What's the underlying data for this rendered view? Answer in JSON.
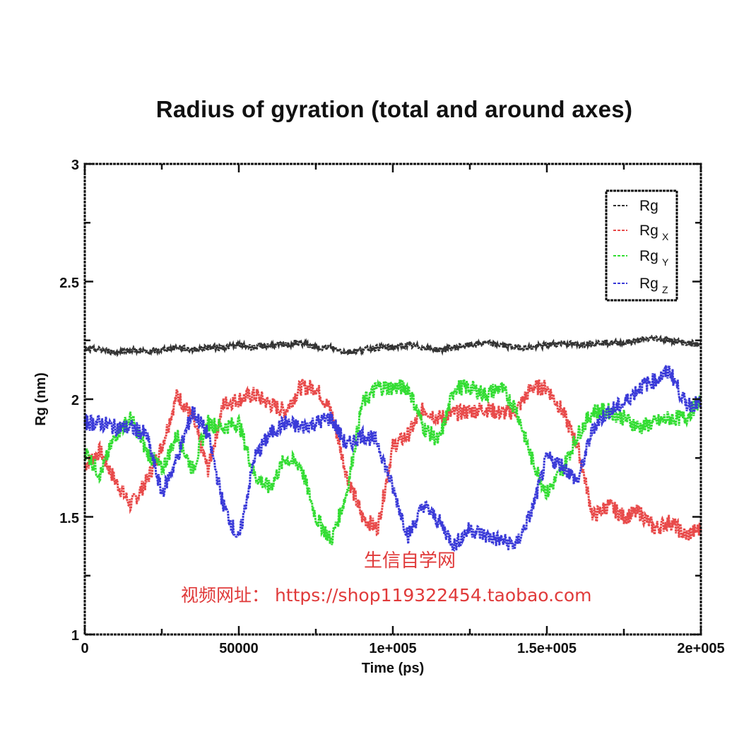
{
  "chart_data": {
    "type": "line",
    "title": "Radius of gyration (total and around axes)",
    "xlabel": "Time (ps)",
    "ylabel": "Rg (nm)",
    "xlim": [
      0,
      200000
    ],
    "ylim": [
      1,
      3
    ],
    "x_ticks": [
      0,
      50000,
      100000,
      150000,
      200000
    ],
    "x_tick_labels": [
      "0",
      "50000",
      "1e+005",
      "1.5e+005",
      "2e+005"
    ],
    "y_ticks": [
      1,
      1.5,
      2,
      2.5,
      3
    ],
    "y_tick_labels": [
      "1",
      "1.5",
      "2",
      "2.5",
      "3"
    ],
    "grid": false,
    "legend_position": "upper right",
    "x": [
      0,
      5000,
      10000,
      15000,
      20000,
      25000,
      30000,
      35000,
      40000,
      45000,
      50000,
      55000,
      60000,
      65000,
      70000,
      75000,
      80000,
      85000,
      90000,
      95000,
      100000,
      105000,
      110000,
      115000,
      120000,
      125000,
      130000,
      135000,
      140000,
      145000,
      150000,
      155000,
      160000,
      165000,
      170000,
      175000,
      180000,
      185000,
      190000,
      195000,
      200000
    ],
    "series": [
      {
        "name": "Rg",
        "color": "#333333",
        "values": [
          2.21,
          2.21,
          2.2,
          2.21,
          2.2,
          2.21,
          2.22,
          2.21,
          2.22,
          2.22,
          2.23,
          2.22,
          2.23,
          2.23,
          2.24,
          2.22,
          2.22,
          2.2,
          2.21,
          2.22,
          2.22,
          2.23,
          2.22,
          2.21,
          2.22,
          2.23,
          2.24,
          2.23,
          2.22,
          2.22,
          2.23,
          2.24,
          2.23,
          2.24,
          2.24,
          2.24,
          2.25,
          2.26,
          2.25,
          2.24,
          2.23
        ]
      },
      {
        "name": "Rg_X",
        "color": "#e84a4a",
        "values": [
          1.72,
          1.78,
          1.65,
          1.55,
          1.65,
          1.8,
          2.02,
          1.92,
          1.7,
          1.98,
          2.0,
          2.02,
          1.98,
          1.95,
          2.05,
          2.05,
          1.95,
          1.68,
          1.5,
          1.45,
          1.8,
          1.85,
          1.96,
          1.92,
          1.94,
          1.95,
          1.96,
          1.94,
          1.95,
          2.05,
          2.05,
          1.95,
          1.8,
          1.5,
          1.55,
          1.5,
          1.52,
          1.45,
          1.48,
          1.42,
          1.45
        ]
      },
      {
        "name": "Rg_Y",
        "color": "#33dd33",
        "values": [
          1.78,
          1.68,
          1.85,
          1.92,
          1.78,
          1.7,
          1.85,
          1.7,
          1.9,
          1.88,
          1.9,
          1.68,
          1.62,
          1.75,
          1.72,
          1.5,
          1.4,
          1.6,
          1.98,
          2.05,
          2.05,
          2.05,
          1.88,
          1.82,
          2.05,
          2.05,
          2.02,
          2.05,
          1.96,
          1.75,
          1.6,
          1.7,
          1.85,
          1.95,
          1.95,
          1.92,
          1.88,
          1.9,
          1.92,
          1.92,
          2.0
        ]
      },
      {
        "name": "Rg_Z",
        "color": "#3a3ad8",
        "values": [
          1.9,
          1.9,
          1.88,
          1.88,
          1.85,
          1.6,
          1.75,
          1.95,
          1.85,
          1.55,
          1.4,
          1.75,
          1.85,
          1.9,
          1.88,
          1.9,
          1.92,
          1.8,
          1.85,
          1.82,
          1.62,
          1.42,
          1.55,
          1.48,
          1.38,
          1.45,
          1.42,
          1.4,
          1.38,
          1.52,
          1.75,
          1.72,
          1.65,
          1.88,
          1.95,
          1.98,
          2.05,
          2.08,
          2.12,
          1.98,
          1.98
        ]
      }
    ],
    "legend": [
      "Rg",
      "Rg_X",
      "Rg_Y",
      "Rg_Z"
    ],
    "annotations": [
      "生信自学网",
      "视频网址： https://shop119322454.taobao.com"
    ]
  },
  "title": "Radius of gyration (total and around axes)",
  "axes": {
    "xlabel": "Time (ps)",
    "ylabel": "Rg (nm)",
    "x_tick_labels": [
      "0",
      "50000",
      "1e+005",
      "1.5e+005",
      "2e+005"
    ],
    "y_tick_labels": [
      "1",
      "1.5",
      "2",
      "2.5",
      "3"
    ]
  },
  "legend": {
    "items": [
      {
        "base": "Rg",
        "sub": ""
      },
      {
        "base": "Rg",
        "sub": "X"
      },
      {
        "base": "Rg",
        "sub": "Y"
      },
      {
        "base": "Rg",
        "sub": "Z"
      }
    ]
  },
  "watermark": {
    "line1": "生信自学网",
    "line2": "视频网址： https://shop119322454.taobao.com"
  }
}
